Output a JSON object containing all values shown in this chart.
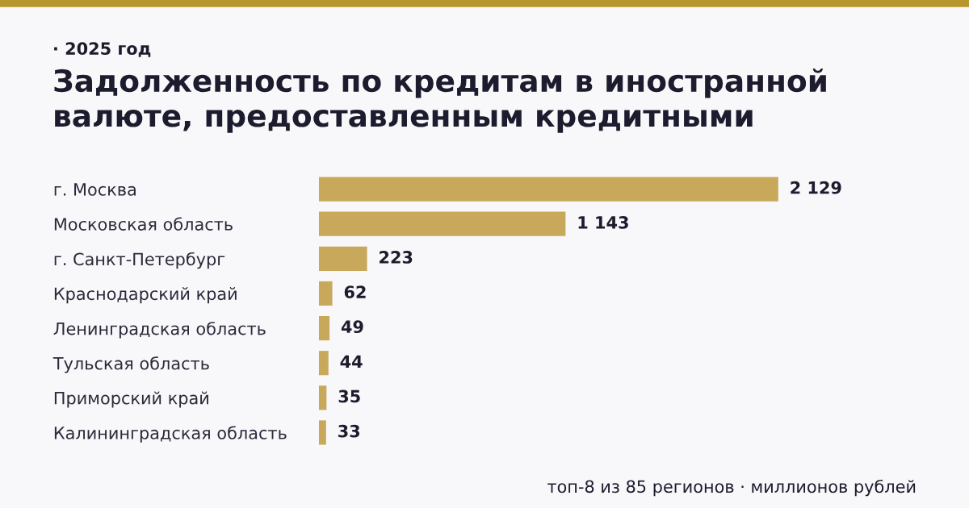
{
  "chart_data": {
    "type": "bar",
    "orientation": "horizontal",
    "subtitle": "· 2025 год",
    "title": "Задолженность по кредитам в иностранной\nвалюте, предоставленным кредитными",
    "categories": [
      "г. Москва",
      "Московская область",
      "г. Санкт-Петербург",
      "Краснодарский край",
      "Ленинградская область",
      "Тульская область",
      "Приморский край",
      "Калининградская область"
    ],
    "values": [
      2129,
      1143,
      223,
      62,
      49,
      44,
      35,
      33
    ],
    "value_labels": [
      "2 129",
      "1 143",
      "223",
      "62",
      "49",
      "44",
      "35",
      "33"
    ],
    "data_labels": true,
    "color": "#c8a95c",
    "grid": false,
    "legend": false,
    "annotations": [
      "топ-8 из 85 регионов · миллионов рублей"
    ]
  }
}
